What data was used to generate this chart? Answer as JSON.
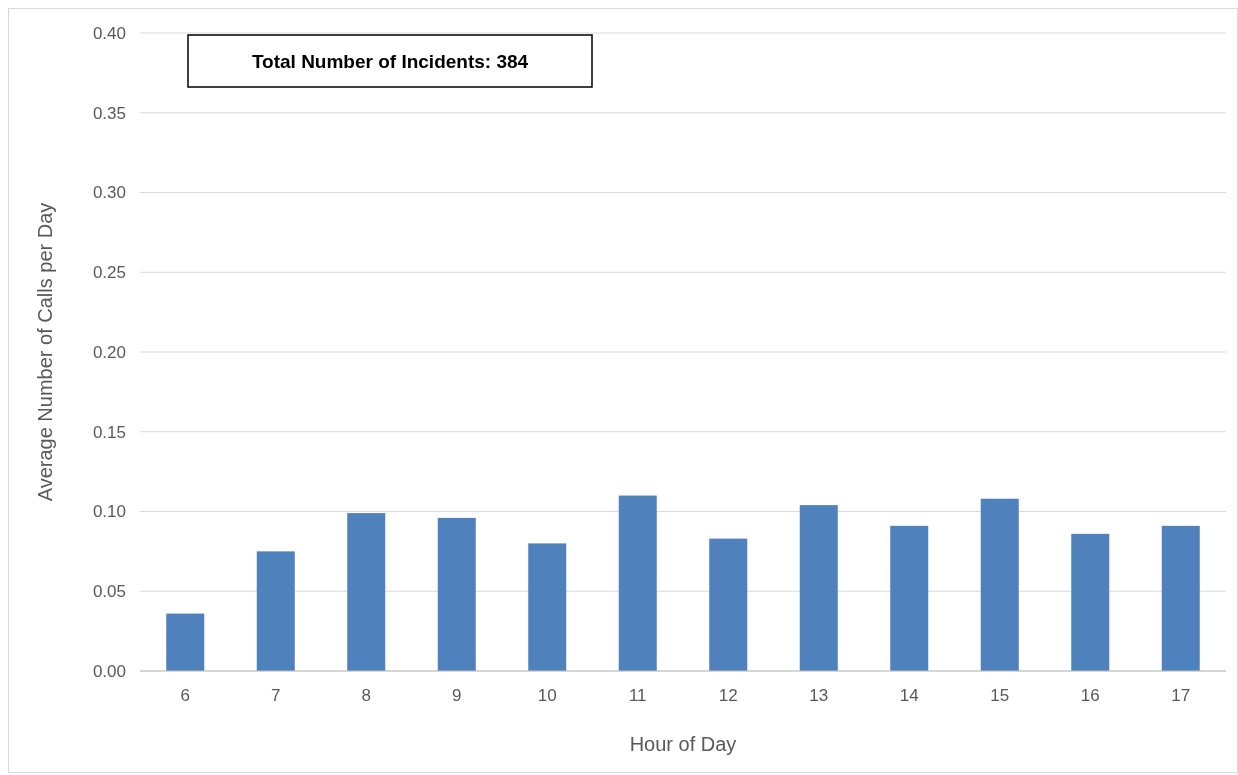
{
  "chart_data": {
    "type": "bar",
    "xlabel": "Hour of Day",
    "ylabel": "Average Number of Calls per Day",
    "categories": [
      "6",
      "7",
      "8",
      "9",
      "10",
      "11",
      "12",
      "13",
      "14",
      "15",
      "16",
      "17"
    ],
    "values": [
      0.036,
      0.075,
      0.099,
      0.096,
      0.08,
      0.11,
      0.083,
      0.104,
      0.091,
      0.108,
      0.086,
      0.091
    ],
    "color": "#4f81bd",
    "ylim": [
      0,
      0.4
    ],
    "yticks": [
      {
        "value": 0,
        "label": "0.00"
      },
      {
        "value": 0.05,
        "label": "0.05"
      },
      {
        "value": 0.1,
        "label": "0.10"
      },
      {
        "value": 0.15,
        "label": "0.15"
      },
      {
        "value": 0.2,
        "label": "0.20"
      },
      {
        "value": 0.25,
        "label": "0.25"
      },
      {
        "value": 0.3,
        "label": "0.30"
      },
      {
        "value": 0.35,
        "label": "0.35"
      },
      {
        "value": 0.4,
        "label": "0.40"
      }
    ],
    "grid": "y",
    "annotations": [
      "Total Number of Incidents: 384"
    ]
  }
}
